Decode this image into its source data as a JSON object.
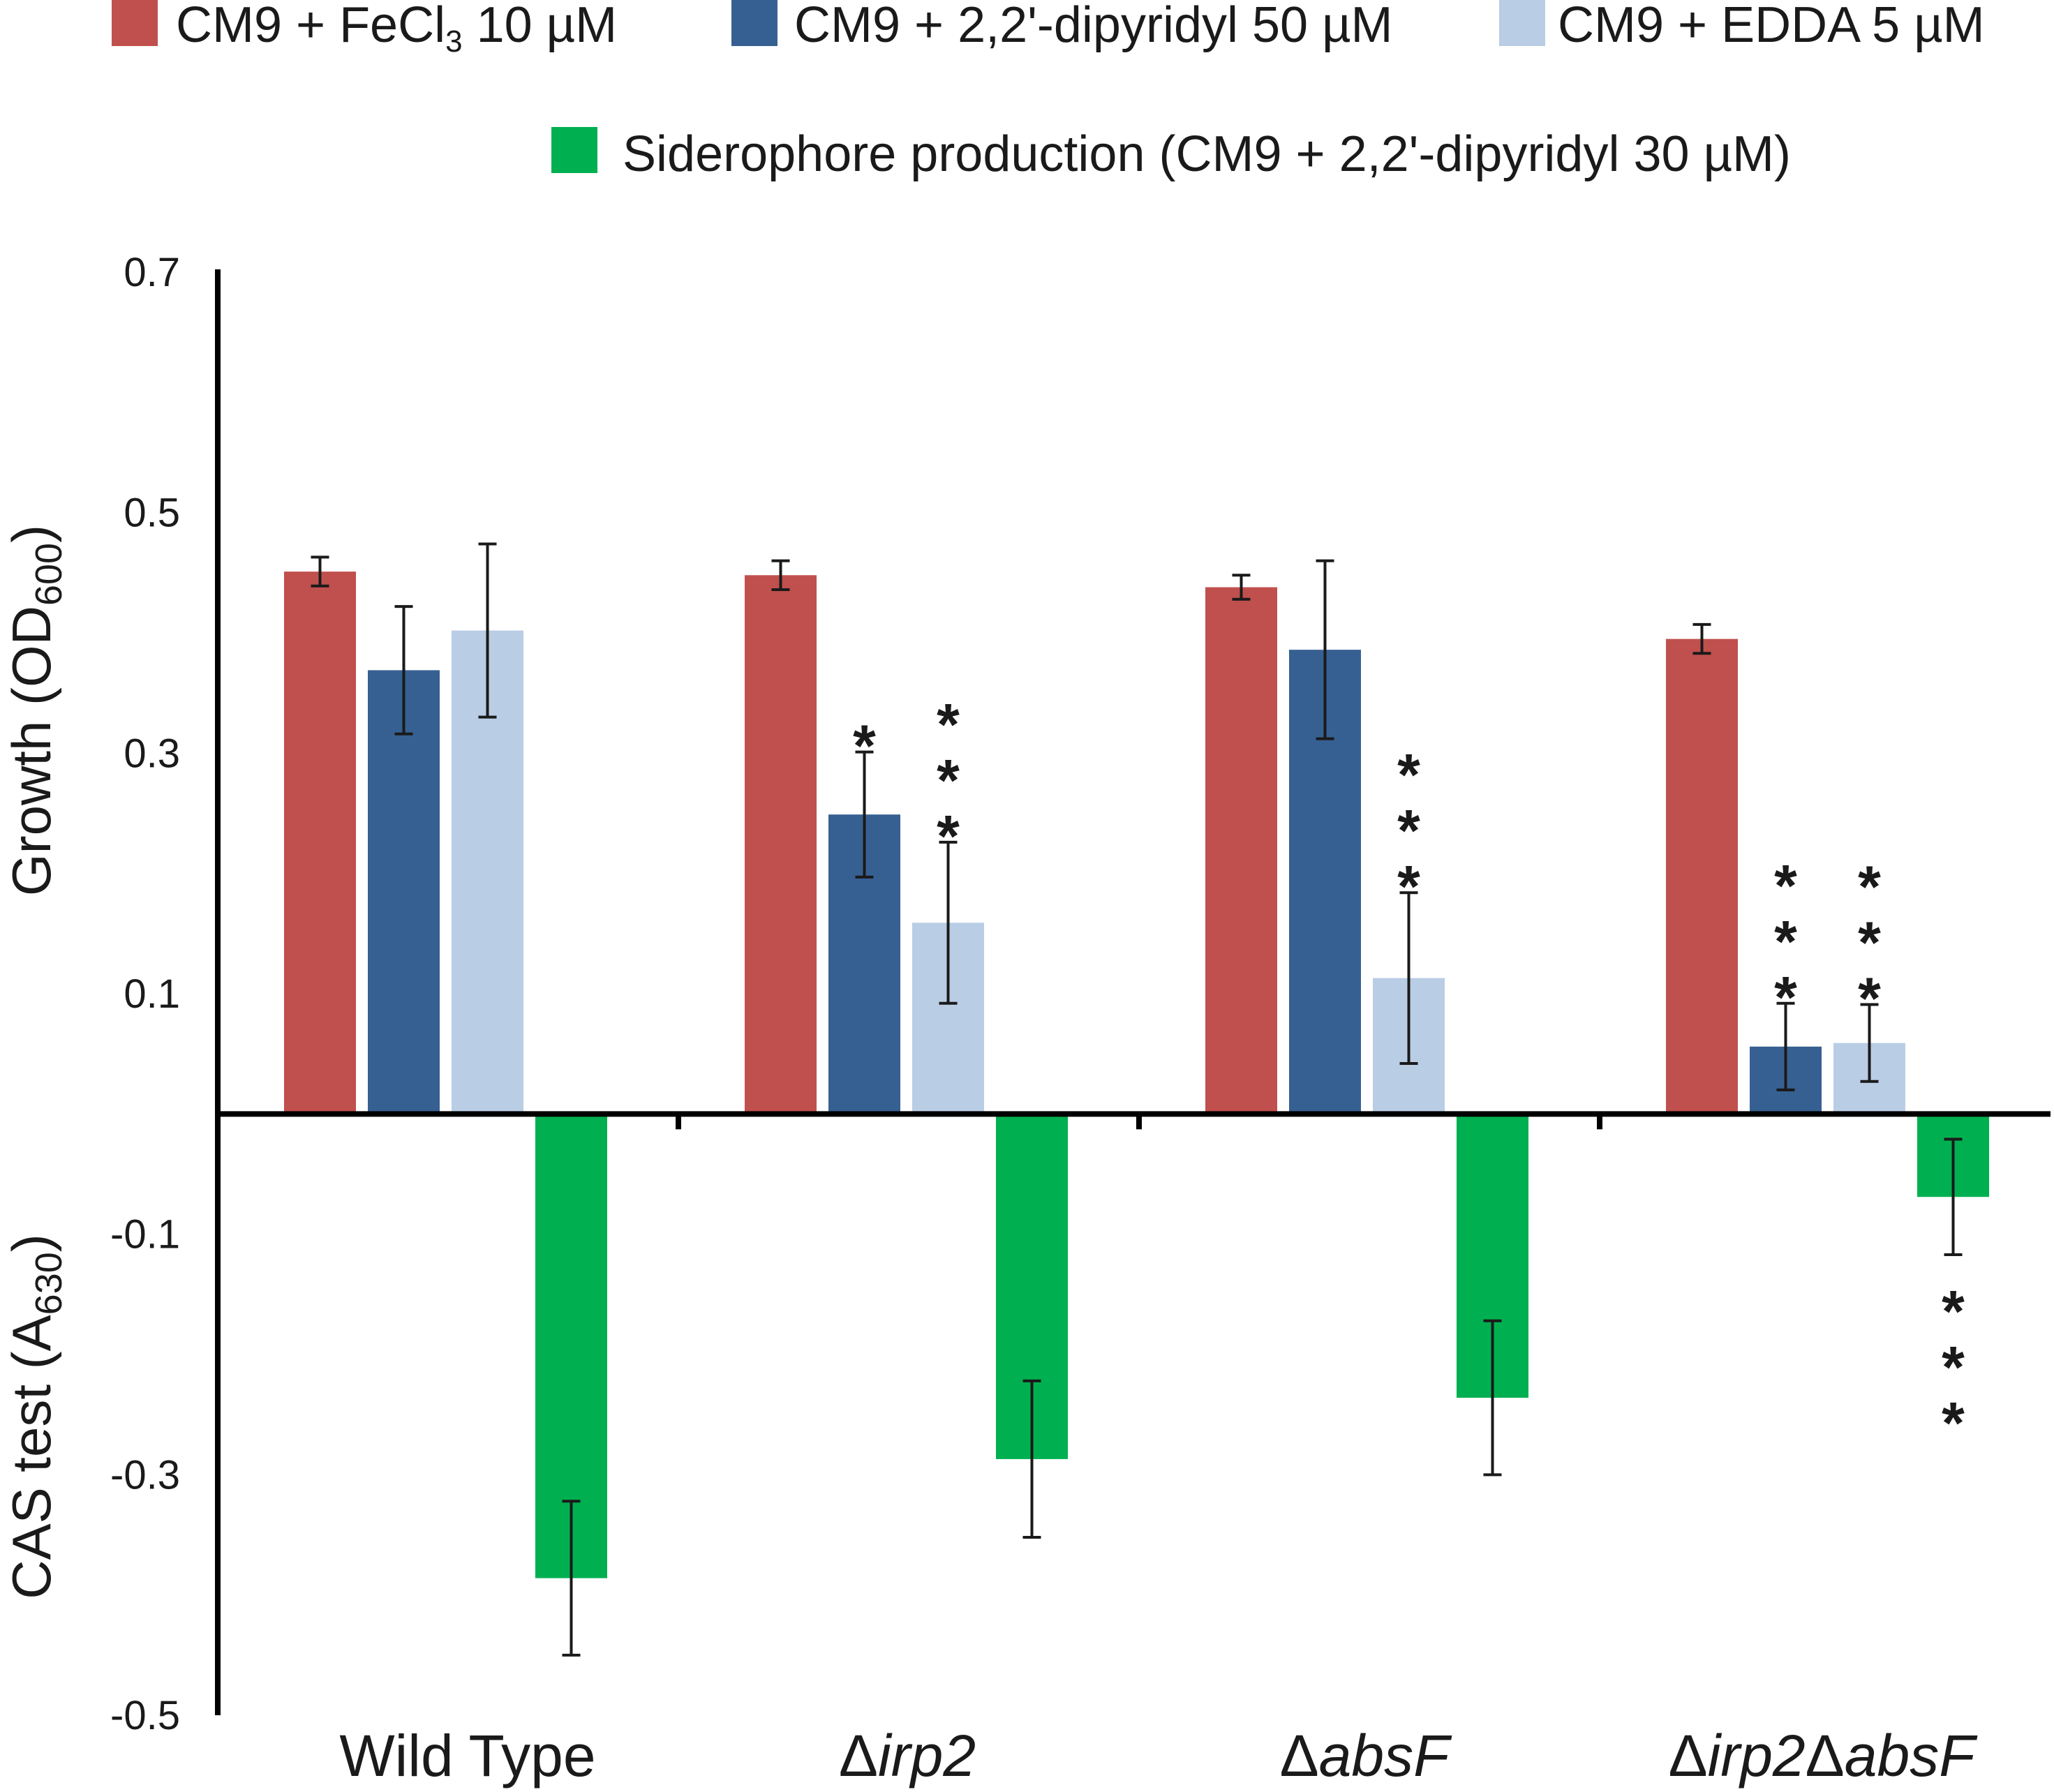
{
  "chart_data": {
    "type": "bar",
    "categories": [
      "Wild Type",
      "Δirp2",
      "ΔabsF",
      "Δirp2ΔabsF"
    ],
    "category_labels": [
      {
        "plain": "Wild Type",
        "parts": [
          {
            "text": "Wild Type",
            "italic": false
          }
        ]
      },
      {
        "plain": "Δirp2",
        "parts": [
          {
            "text": "Δ",
            "italic": false
          },
          {
            "text": "irp2",
            "italic": true
          }
        ]
      },
      {
        "plain": "ΔabsF",
        "parts": [
          {
            "text": "Δ",
            "italic": false
          },
          {
            "text": "absF",
            "italic": true
          }
        ]
      },
      {
        "plain": "Δirp2ΔabsF",
        "parts": [
          {
            "text": "Δ",
            "italic": false
          },
          {
            "text": "irp2",
            "italic": true
          },
          {
            "text": "Δ",
            "italic": false
          },
          {
            "text": "absF",
            "italic": true
          }
        ]
      }
    ],
    "ylim": [
      -0.5,
      0.7
    ],
    "yticks": [
      "0.7",
      "0.5",
      "0.3",
      "0.1",
      "-0.1",
      "-0.3",
      "-0.5"
    ],
    "ylabel_top": {
      "text": "Growth (OD",
      "sub": "600",
      "close": ")"
    },
    "ylabel_bottom": {
      "text": "CAS test (A",
      "sub": "630",
      "close": ")"
    },
    "series": [
      {
        "name": "CM9 + FeCl3 10 µM",
        "legend": {
          "text": "CM9 + FeCl",
          "sub": "3",
          "after": " 10 µM"
        },
        "color": "#c0504d",
        "values": [
          0.451,
          0.448,
          0.438,
          0.395
        ],
        "errors": [
          0.012,
          0.012,
          0.01,
          0.012
        ],
        "significance": [
          "",
          "",
          "",
          ""
        ]
      },
      {
        "name": "CM9 + 2,2'-dipyridyl 50 µM",
        "legend": {
          "text": "CM9 + 2,2'-dipyridyl 50 µM",
          "sub": "",
          "after": ""
        },
        "color": "#376092",
        "values": [
          0.369,
          0.249,
          0.386,
          0.056
        ],
        "errors": [
          0.053,
          0.052,
          0.074,
          0.036
        ],
        "significance": [
          "",
          "*",
          "",
          "***"
        ]
      },
      {
        "name": "CM9 + EDDA 5 µM",
        "legend": {
          "text": "CM9 + EDDA 5 µM",
          "sub": "",
          "after": ""
        },
        "color": "#b9cde5",
        "values": [
          0.402,
          0.159,
          0.113,
          0.059
        ],
        "errors": [
          0.072,
          0.067,
          0.071,
          0.032
        ],
        "significance": [
          "",
          "***",
          "***",
          "***"
        ]
      },
      {
        "name": "Siderophore production (CM9 + 2,2'-dipyridyl 30 µM)",
        "legend": {
          "text": "Siderophore production (CM9 + 2,2'-dipyridyl 30 µM)",
          "sub": "",
          "after": ""
        },
        "color": "#00b050",
        "values": [
          -0.386,
          -0.287,
          -0.236,
          -0.069
        ],
        "errors": [
          0.064,
          0.065,
          0.064,
          0.048
        ],
        "significance": [
          "",
          "",
          "",
          "***"
        ]
      }
    ]
  }
}
